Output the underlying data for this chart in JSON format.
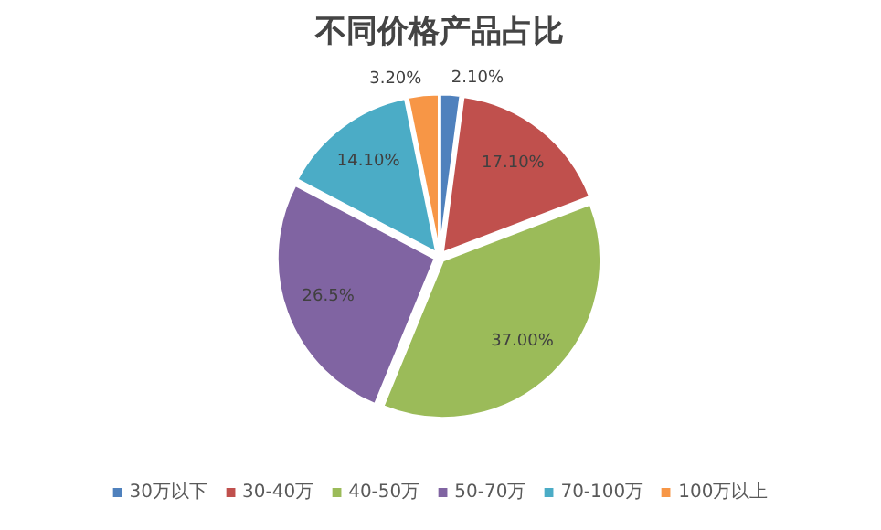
{
  "chart_data": {
    "type": "pie",
    "title": "不同价格产品占比",
    "categories": [
      "30万以下",
      "30-40万",
      "40-50万",
      "50-70万",
      "70-100万",
      "100万以上"
    ],
    "values": [
      2.1,
      17.1,
      37.0,
      26.5,
      14.1,
      3.2
    ],
    "value_labels": [
      "2.10%",
      "17.10%",
      "37.00%",
      "26.5%",
      "14.10%",
      "3.20%"
    ],
    "colors": [
      "#4f81bd",
      "#c0504d",
      "#9bbb59",
      "#8064a2",
      "#4bacc6",
      "#f79646"
    ],
    "legend": "bottom"
  }
}
